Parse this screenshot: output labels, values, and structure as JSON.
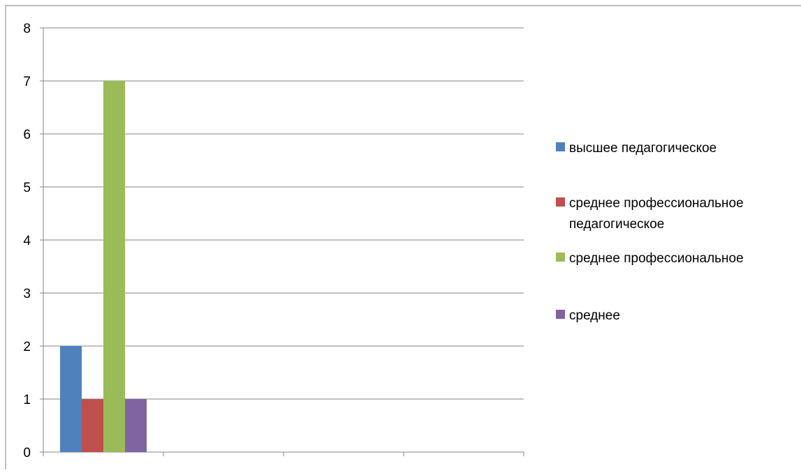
{
  "chart_data": {
    "type": "bar",
    "categories": [
      "",
      "",
      "",
      ""
    ],
    "series": [
      {
        "name": "высшее педагогическое",
        "color": "#4F81BD",
        "values": [
          2,
          null,
          null,
          null
        ]
      },
      {
        "name": "среднее профессиональное педагогическое",
        "color": "#C0504D",
        "values": [
          1,
          null,
          null,
          null
        ]
      },
      {
        "name": "среднее профессиональное",
        "color": "#9BBB59",
        "values": [
          7,
          null,
          null,
          null
        ]
      },
      {
        "name": "среднее",
        "color": "#8064A2",
        "values": [
          1,
          null,
          null,
          null
        ]
      }
    ],
    "title": "",
    "xlabel": "",
    "ylabel": "",
    "ylim": [
      0,
      8
    ],
    "yticks": [
      "0",
      "1",
      "2",
      "3",
      "4",
      "5",
      "6",
      "7",
      "8"
    ],
    "grid": true,
    "legend_position": "right",
    "legend_lines": [
      [
        "высшее педагогическое"
      ],
      [
        "среднее профессиональное",
        "педагогическое"
      ],
      [
        "среднее профессиональное"
      ],
      [
        "среднее"
      ]
    ]
  }
}
